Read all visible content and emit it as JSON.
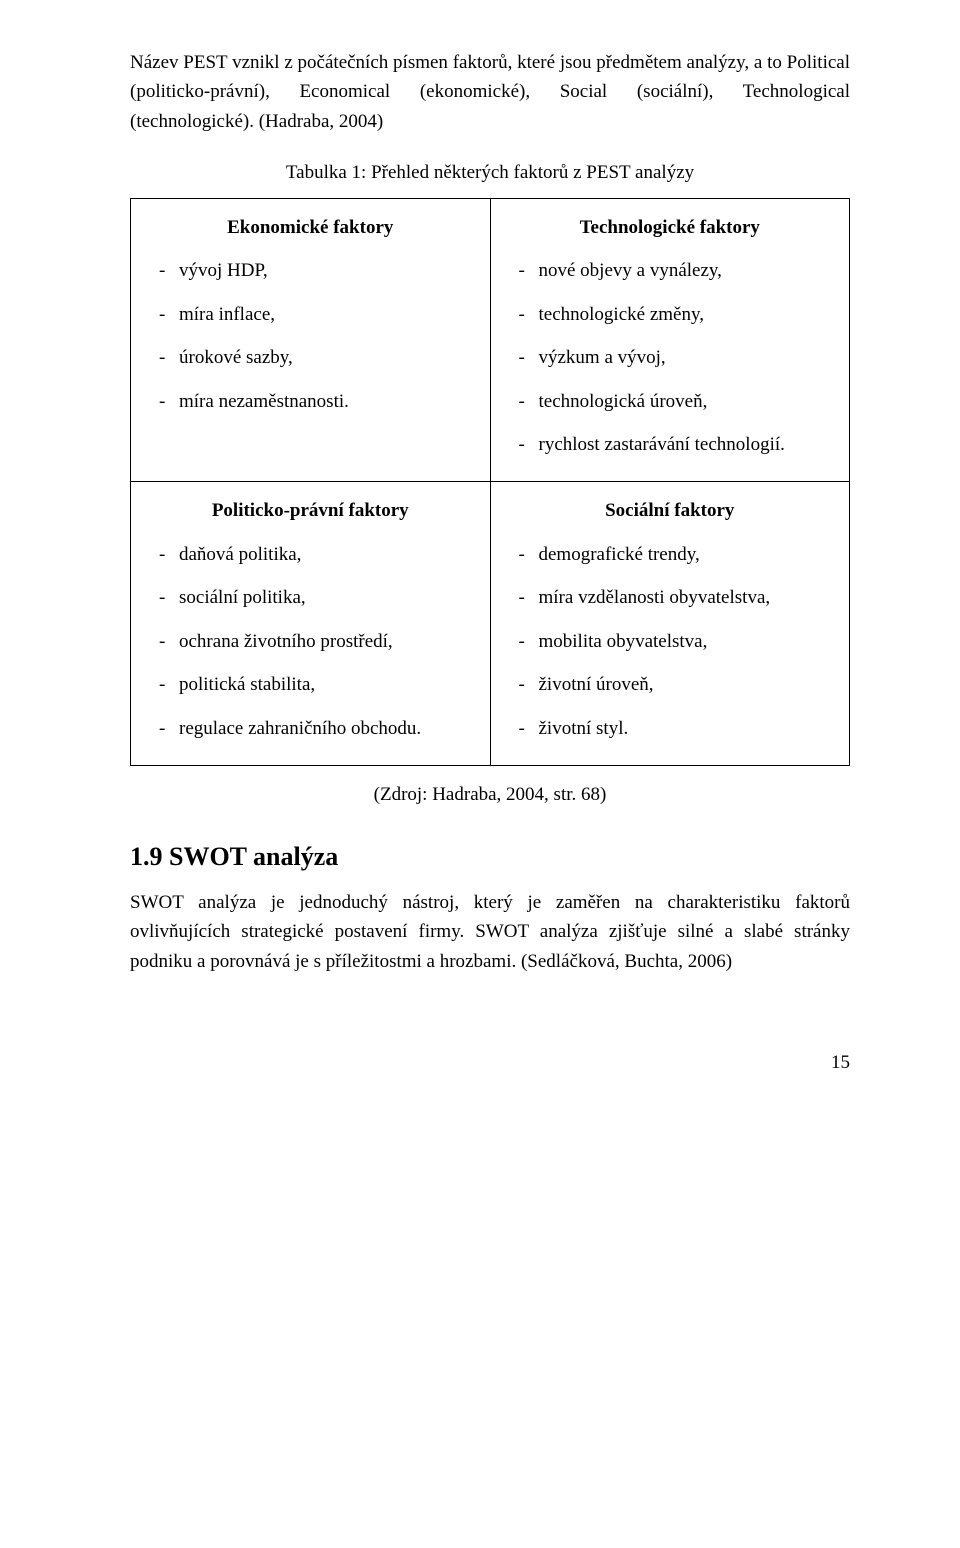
{
  "intro_paragraph": "Název PEST vznikl z počátečních písmen faktorů, které jsou předmětem analýzy, a to Political (politicko-právní), Economical (ekonomické), Social (sociální), Technological (technologické). (Hadraba, 2004)",
  "table_caption": "Tabulka 1: Přehled některých faktorů z PEST analýzy",
  "table": {
    "cells": [
      [
        {
          "heading": "Ekonomické faktory",
          "items": [
            "vývoj HDP,",
            "míra inflace,",
            "úrokové sazby,",
            "míra nezaměstnanosti."
          ]
        },
        {
          "heading": "Technologické faktory",
          "items": [
            "nové objevy a vynálezy,",
            "technologické změny,",
            "výzkum a vývoj,",
            "technologická úroveň,",
            "rychlost zastarávání technologií."
          ]
        }
      ],
      [
        {
          "heading": "Politicko-právní faktory",
          "items": [
            "daňová politika,",
            "sociální politika,",
            "ochrana životního prostředí,",
            "politická stabilita,",
            "regulace zahraničního obchodu."
          ]
        },
        {
          "heading": "Sociální faktory",
          "items": [
            "demografické trendy,",
            "míra vzdělanosti obyvatelstva,",
            "mobilita obyvatelstva,",
            "životní úroveň,",
            "životní styl."
          ]
        }
      ]
    ]
  },
  "source_line": "(Zdroj: Hadraba, 2004, str. 68)",
  "section": {
    "heading": "1.9 SWOT analýza",
    "paragraph": "SWOT analýza je jednoduchý nástroj, který je zaměřen na charakteristiku faktorů ovlivňujících strategické postavení firmy. SWOT  analýza zjišťuje silné a slabé stránky podniku a porovnává je s příležitostmi a hrozbami. (Sedláčková, Buchta, 2006)"
  },
  "page_number": "15"
}
